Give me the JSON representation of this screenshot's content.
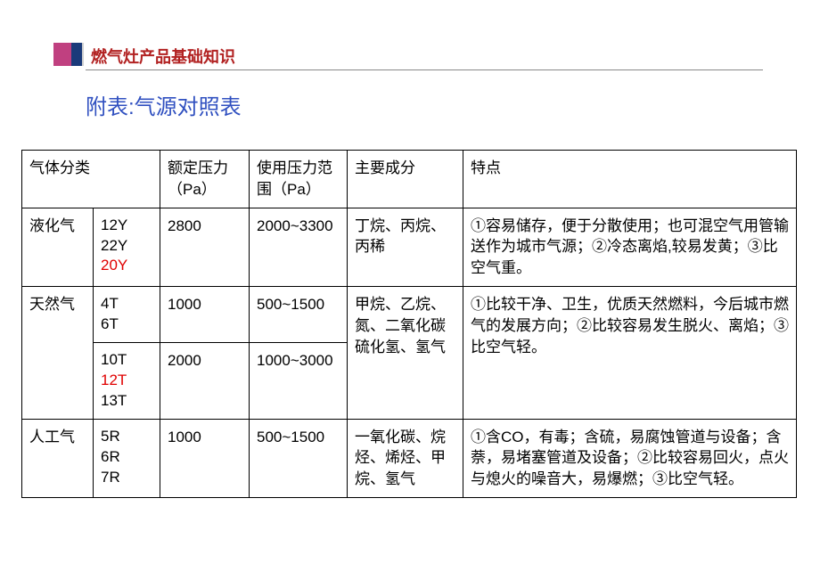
{
  "header": {
    "title": "燃气灶产品基础知识"
  },
  "subtitle": "附表:气源对照表",
  "table": {
    "headers": {
      "category": "气体分类",
      "pressure": "额定压力（Pa）",
      "range": "使用压力范围（Pa）",
      "components": "主要成分",
      "features": "特点"
    },
    "rows": {
      "lpg": {
        "category": "液化气",
        "codes": [
          "12Y",
          "22Y",
          "20Y"
        ],
        "code_red": "20Y",
        "pressure": "2800",
        "range": "2000~3300",
        "components": "丁烷、丙烷、丙稀",
        "features": "①容易储存，便于分散使用；也可混空气用管输送作为城市气源；②冷态离焰,较易发黄；③比空气重。"
      },
      "ng1": {
        "category": "天然气",
        "codes": [
          "4T",
          "6T"
        ],
        "pressure": "1000",
        "range": "500~1500",
        "components": "甲烷、乙烷、氮、二氧化碳硫化氢、氢气",
        "features": "①比较干净、卫生，优质天然燃料，今后城市燃气的发展方向；②比较容易发生脱火、离焰；③比空气轻。"
      },
      "ng2": {
        "codes": [
          "10T",
          "12T",
          "13T"
        ],
        "code_red": "12T",
        "pressure": "2000",
        "range": "1000~3000"
      },
      "mg": {
        "category": "人工气",
        "codes": [
          "5R",
          "6R",
          "7R"
        ],
        "pressure": "1000",
        "range": "500~1500",
        "components": "一氧化碳、烷烃、烯烃、甲烷、氢气",
        "features": "①含CO，有毒；含硫，易腐蚀管道与设备；含萘，易堵塞管道及设备；②比较容易回火，点火与熄火的噪音大，易爆燃；③比空气轻。"
      }
    }
  },
  "colors": {
    "title_color": "#b22222",
    "subtitle_color": "#3050c0",
    "red_code": "#e00000",
    "border": "#000000",
    "bar_magenta": "#c04080",
    "bar_navy": "#1a3a7a"
  }
}
